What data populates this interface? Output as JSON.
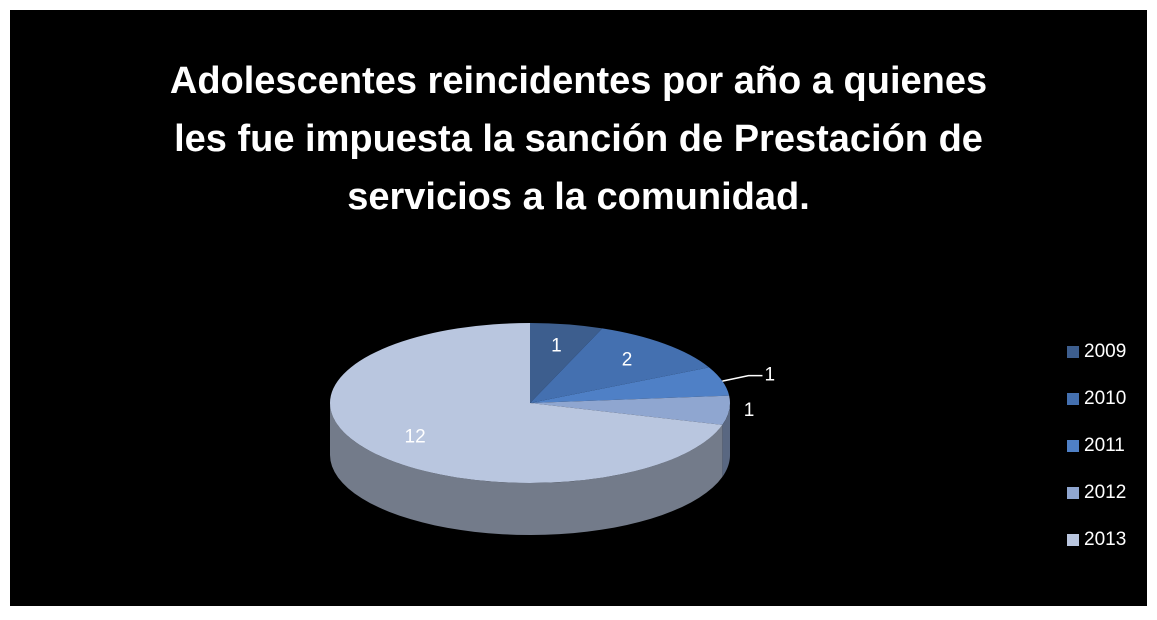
{
  "chart_data": {
    "type": "pie",
    "title": [
      "Adolescentes reincidentes por año a quienes",
      "les fue impuesta la sanción de Prestación de",
      "servicios a la comunidad."
    ],
    "categories": [
      "2009",
      "2010",
      "2011",
      "2012",
      "2013"
    ],
    "values": [
      1,
      2,
      1,
      1,
      12
    ],
    "colors": [
      "#3d5e8e",
      "#4470b0",
      "#4f80c6",
      "#8fa6d0",
      "#b9c6df"
    ],
    "legend": "right"
  }
}
